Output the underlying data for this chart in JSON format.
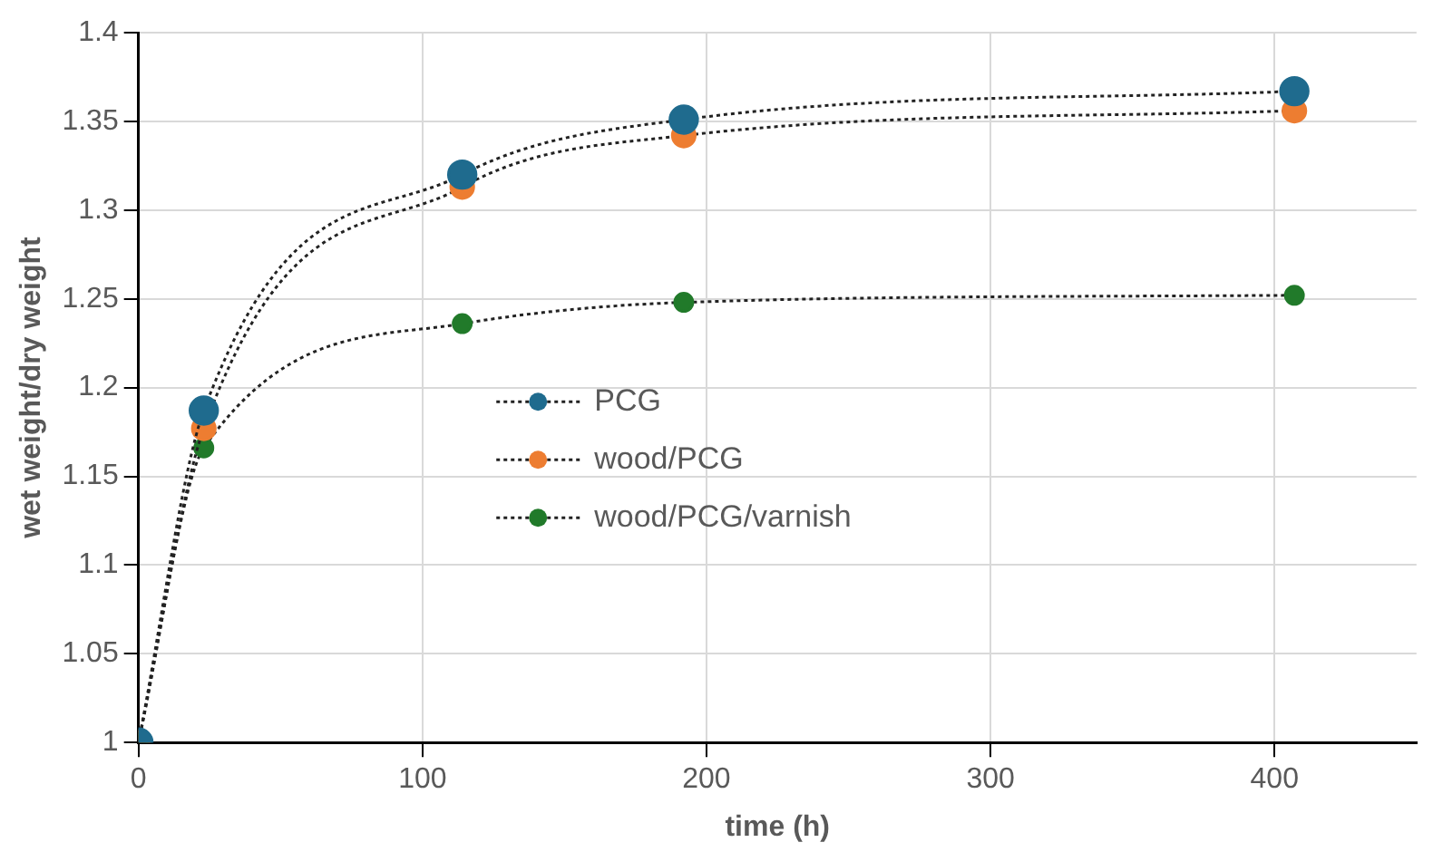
{
  "chart_data": {
    "type": "line",
    "xlabel": "time (h)",
    "ylabel": "wet weight/dry weight",
    "x": [
      0,
      23,
      114,
      192,
      407
    ],
    "series": [
      {
        "name": "PCG",
        "color": "#1f6b8e",
        "values": [
          1,
          1.187,
          1.32,
          1.351,
          1.367
        ]
      },
      {
        "name": "wood/PCG",
        "color": "#ed7d31",
        "values": [
          1,
          1.177,
          1.313,
          1.342,
          1.356
        ]
      },
      {
        "name": "wood/PCG/varnish",
        "color": "#217a2a",
        "values": [
          1,
          1.166,
          1.236,
          1.248,
          1.252
        ]
      }
    ],
    "xlim": [
      0,
      450
    ],
    "xticks": [
      0,
      100,
      200,
      300,
      400
    ],
    "ylim": [
      1,
      1.4
    ],
    "yticks": [
      1,
      1.05,
      1.1,
      1.15,
      1.2,
      1.25,
      1.3,
      1.35,
      1.4
    ],
    "grid": true,
    "legend": "center left",
    "marker": "circle",
    "line_style": "dotted"
  }
}
